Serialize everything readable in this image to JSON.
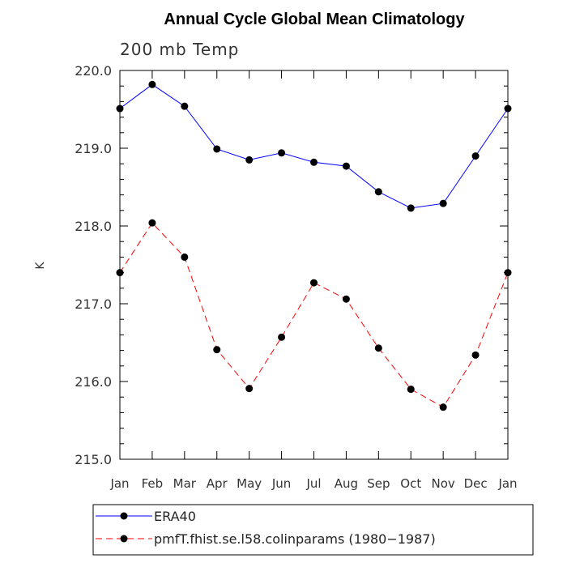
{
  "chart_data": {
    "type": "line",
    "title": "Annual Cycle Global Mean Climatology",
    "subtitle": "200 mb Temp",
    "xlabel": "",
    "ylabel": "K",
    "categories": [
      "Jan",
      "Feb",
      "Mar",
      "Apr",
      "May",
      "Jun",
      "Jul",
      "Aug",
      "Sep",
      "Oct",
      "Nov",
      "Dec",
      "Jan"
    ],
    "ylim": [
      215.0,
      220.0
    ],
    "yticks": [
      215.0,
      216.0,
      217.0,
      218.0,
      219.0,
      220.0
    ],
    "ytick_labels": [
      "215.0",
      "216.0",
      "217.0",
      "218.0",
      "219.0",
      "220.0"
    ],
    "legend_position": "bottom",
    "series": [
      {
        "name": "ERA40",
        "color": "#0000ff",
        "dash": "solid",
        "values": [
          219.51,
          219.82,
          219.54,
          218.99,
          218.85,
          218.94,
          218.82,
          218.77,
          218.44,
          218.23,
          218.29,
          218.9,
          219.51
        ]
      },
      {
        "name": "pmfT.fhist.se.l58.colinparams (1980−1987)",
        "color": "#ff0000",
        "dash": "dashed",
        "values": [
          217.4,
          218.04,
          217.6,
          216.41,
          215.91,
          216.57,
          217.27,
          217.06,
          216.43,
          215.9,
          215.67,
          216.34,
          217.4
        ]
      }
    ]
  }
}
